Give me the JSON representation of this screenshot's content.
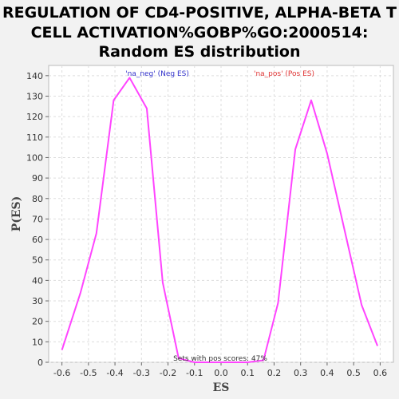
{
  "chart_data": {
    "type": "line",
    "title_lines": [
      "REGULATION OF CD4-POSITIVE, ALPHA-BETA T",
      "CELL ACTIVATION%GOBP%GO:2000514:",
      "Random ES distribution"
    ],
    "xlabel": "ES",
    "ylabel": "P(ES)",
    "xlim": [
      -0.65,
      0.65
    ],
    "ylim": [
      0,
      145
    ],
    "x_ticks": [
      "-0.6",
      "-0.5",
      "-0.4",
      "-0.3",
      "-0.2",
      "-0.1",
      "0.0",
      "0.1",
      "0.2",
      "0.3",
      "0.4",
      "0.5",
      "0.6"
    ],
    "y_ticks": [
      "0",
      "10",
      "20",
      "30",
      "40",
      "50",
      "60",
      "70",
      "80",
      "90",
      "100",
      "110",
      "120",
      "130",
      "140"
    ],
    "grid": true,
    "series": [
      {
        "name": "'na_neg' (Neg ES)",
        "color": "#ff44ff",
        "points": [
          [
            -0.6,
            6
          ],
          [
            -0.53,
            34
          ],
          [
            -0.47,
            63
          ],
          [
            -0.405,
            128
          ],
          [
            -0.345,
            139
          ],
          [
            -0.28,
            124
          ],
          [
            -0.22,
            39
          ],
          [
            -0.16,
            2
          ],
          [
            -0.1,
            0
          ],
          [
            0.0,
            0
          ]
        ]
      },
      {
        "name": "'na_pos' (Pos ES)",
        "color": "#ff44ff",
        "points": [
          [
            0.0,
            0
          ],
          [
            0.1,
            0
          ],
          [
            0.16,
            1
          ],
          [
            0.215,
            29
          ],
          [
            0.28,
            104
          ],
          [
            0.34,
            128
          ],
          [
            0.4,
            102
          ],
          [
            0.465,
            65
          ],
          [
            0.53,
            28
          ],
          [
            0.59,
            8
          ]
        ]
      }
    ],
    "legend": [
      {
        "label": "'na_neg' (Neg ES)",
        "color": "#3333cc"
      },
      {
        "label": "'na_pos' (Pos ES)",
        "color": "#e03333"
      }
    ],
    "annotation": "Sets with pos scores: 47%",
    "colors": {
      "line": "#ff44ff",
      "plot_bg": "#ffffff",
      "page_bg": "#f2f2f2",
      "grid": "#dddddd"
    }
  }
}
